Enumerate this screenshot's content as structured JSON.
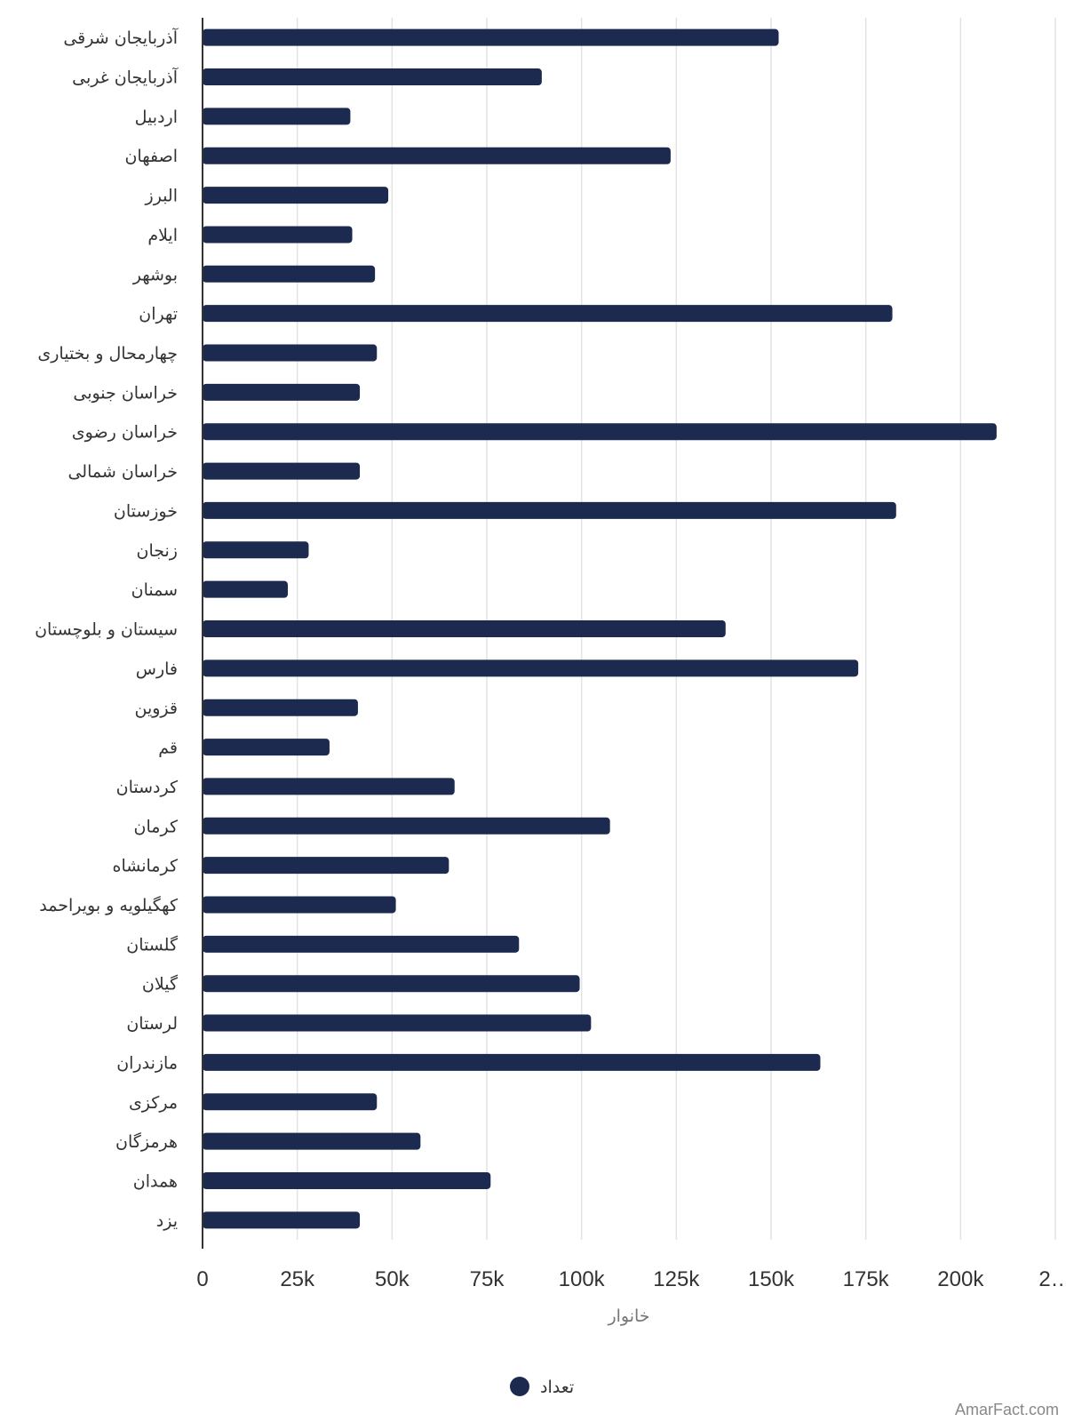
{
  "chart_data": {
    "type": "bar",
    "orientation": "horizontal",
    "categories": [
      "آذربایجان شرقی",
      "آذربایجان غربی",
      "اردبیل",
      "اصفهان",
      "البرز",
      "ایلام",
      "بوشهر",
      "تهران",
      "چهارمحال و بختیاری",
      "خراسان جنوبی",
      "خراسان رضوی",
      "خراسان شمالی",
      "خوزستان",
      "زنجان",
      "سمنان",
      "سیستان و بلوچستان",
      "فارس",
      "قزوین",
      "قم",
      "کردستان",
      "کرمان",
      "کرمانشاه",
      "کهگیلویه و بویراحمد",
      "گلستان",
      "گیلان",
      "لرستان",
      "مازندران",
      "مرکزی",
      "هرمزگان",
      "همدان",
      "یزد"
    ],
    "series": [
      {
        "name": "تعداد",
        "color": "#1b2a4e",
        "values": [
          152000,
          89500,
          39000,
          123500,
          49000,
          39500,
          45500,
          182000,
          46000,
          41500,
          209500,
          41500,
          183000,
          28000,
          22500,
          138000,
          173000,
          41000,
          33500,
          66500,
          107500,
          65000,
          51000,
          83500,
          99500,
          102500,
          163000,
          46000,
          57500,
          76000,
          41500
        ]
      }
    ],
    "xlabel": "خانوار",
    "xlim": [
      0,
      225000
    ],
    "xticks": [
      "0",
      "25k",
      "50k",
      "75k",
      "100k",
      "125k",
      "150k",
      "175k",
      "200k",
      "2…"
    ],
    "grid": true,
    "legend_position": "bottom-center",
    "credit": "AmarFact.com"
  }
}
